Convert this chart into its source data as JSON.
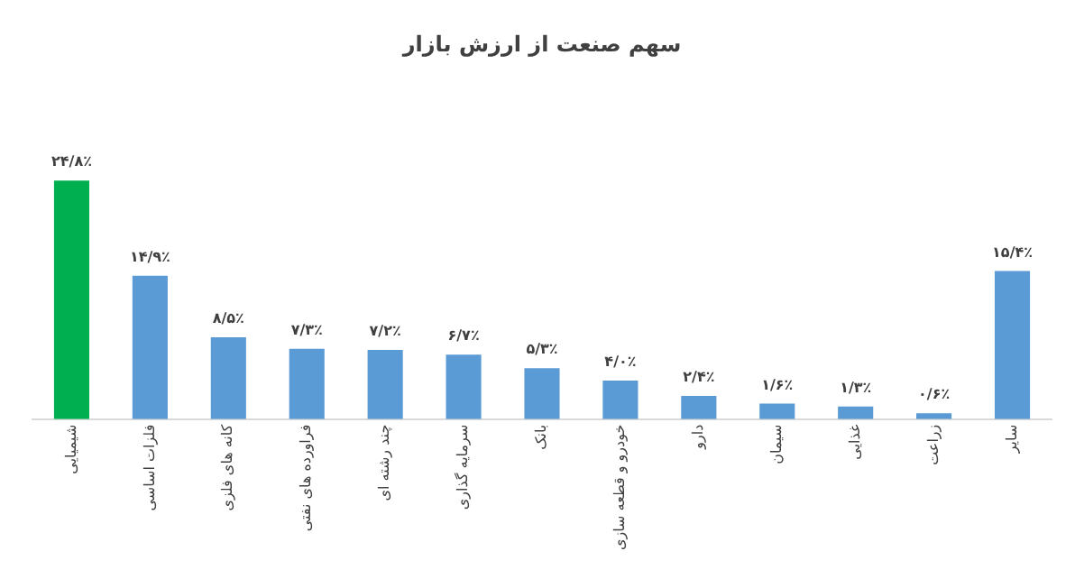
{
  "chart_data": {
    "type": "bar",
    "title": "سهم صنعت از ارزش بازار",
    "categories": [
      "شیمیایی",
      "فلزات اساسی",
      "کانه های فلزی",
      "فراورده های نفتی",
      "چند رشته ای",
      "سرمایه گذاری",
      "بانک",
      "خودرو و قطعه سازی",
      "دارو",
      "سیمان",
      "غذایی",
      "زراعت",
      "سایر"
    ],
    "values": [
      24.8,
      14.9,
      8.5,
      7.3,
      7.2,
      6.7,
      5.3,
      4.0,
      2.4,
      1.6,
      1.3,
      0.6,
      15.4
    ],
    "value_labels": [
      "۲۴/۸٪",
      "۱۴/۹٪",
      "۸/۵٪",
      "۷/۳٪",
      "۷/۲٪",
      "۶/۷٪",
      "۵/۳٪",
      "۴/۰٪",
      "۲/۴٪",
      "۱/۶٪",
      "۱/۳٪",
      "۰/۶٪",
      "۱۵/۴٪"
    ],
    "colors": [
      "#00b050",
      "#5b9bd5",
      "#5b9bd5",
      "#5b9bd5",
      "#5b9bd5",
      "#5b9bd5",
      "#5b9bd5",
      "#5b9bd5",
      "#5b9bd5",
      "#5b9bd5",
      "#5b9bd5",
      "#5b9bd5",
      "#5b9bd5"
    ],
    "grid": false,
    "legend": false
  }
}
